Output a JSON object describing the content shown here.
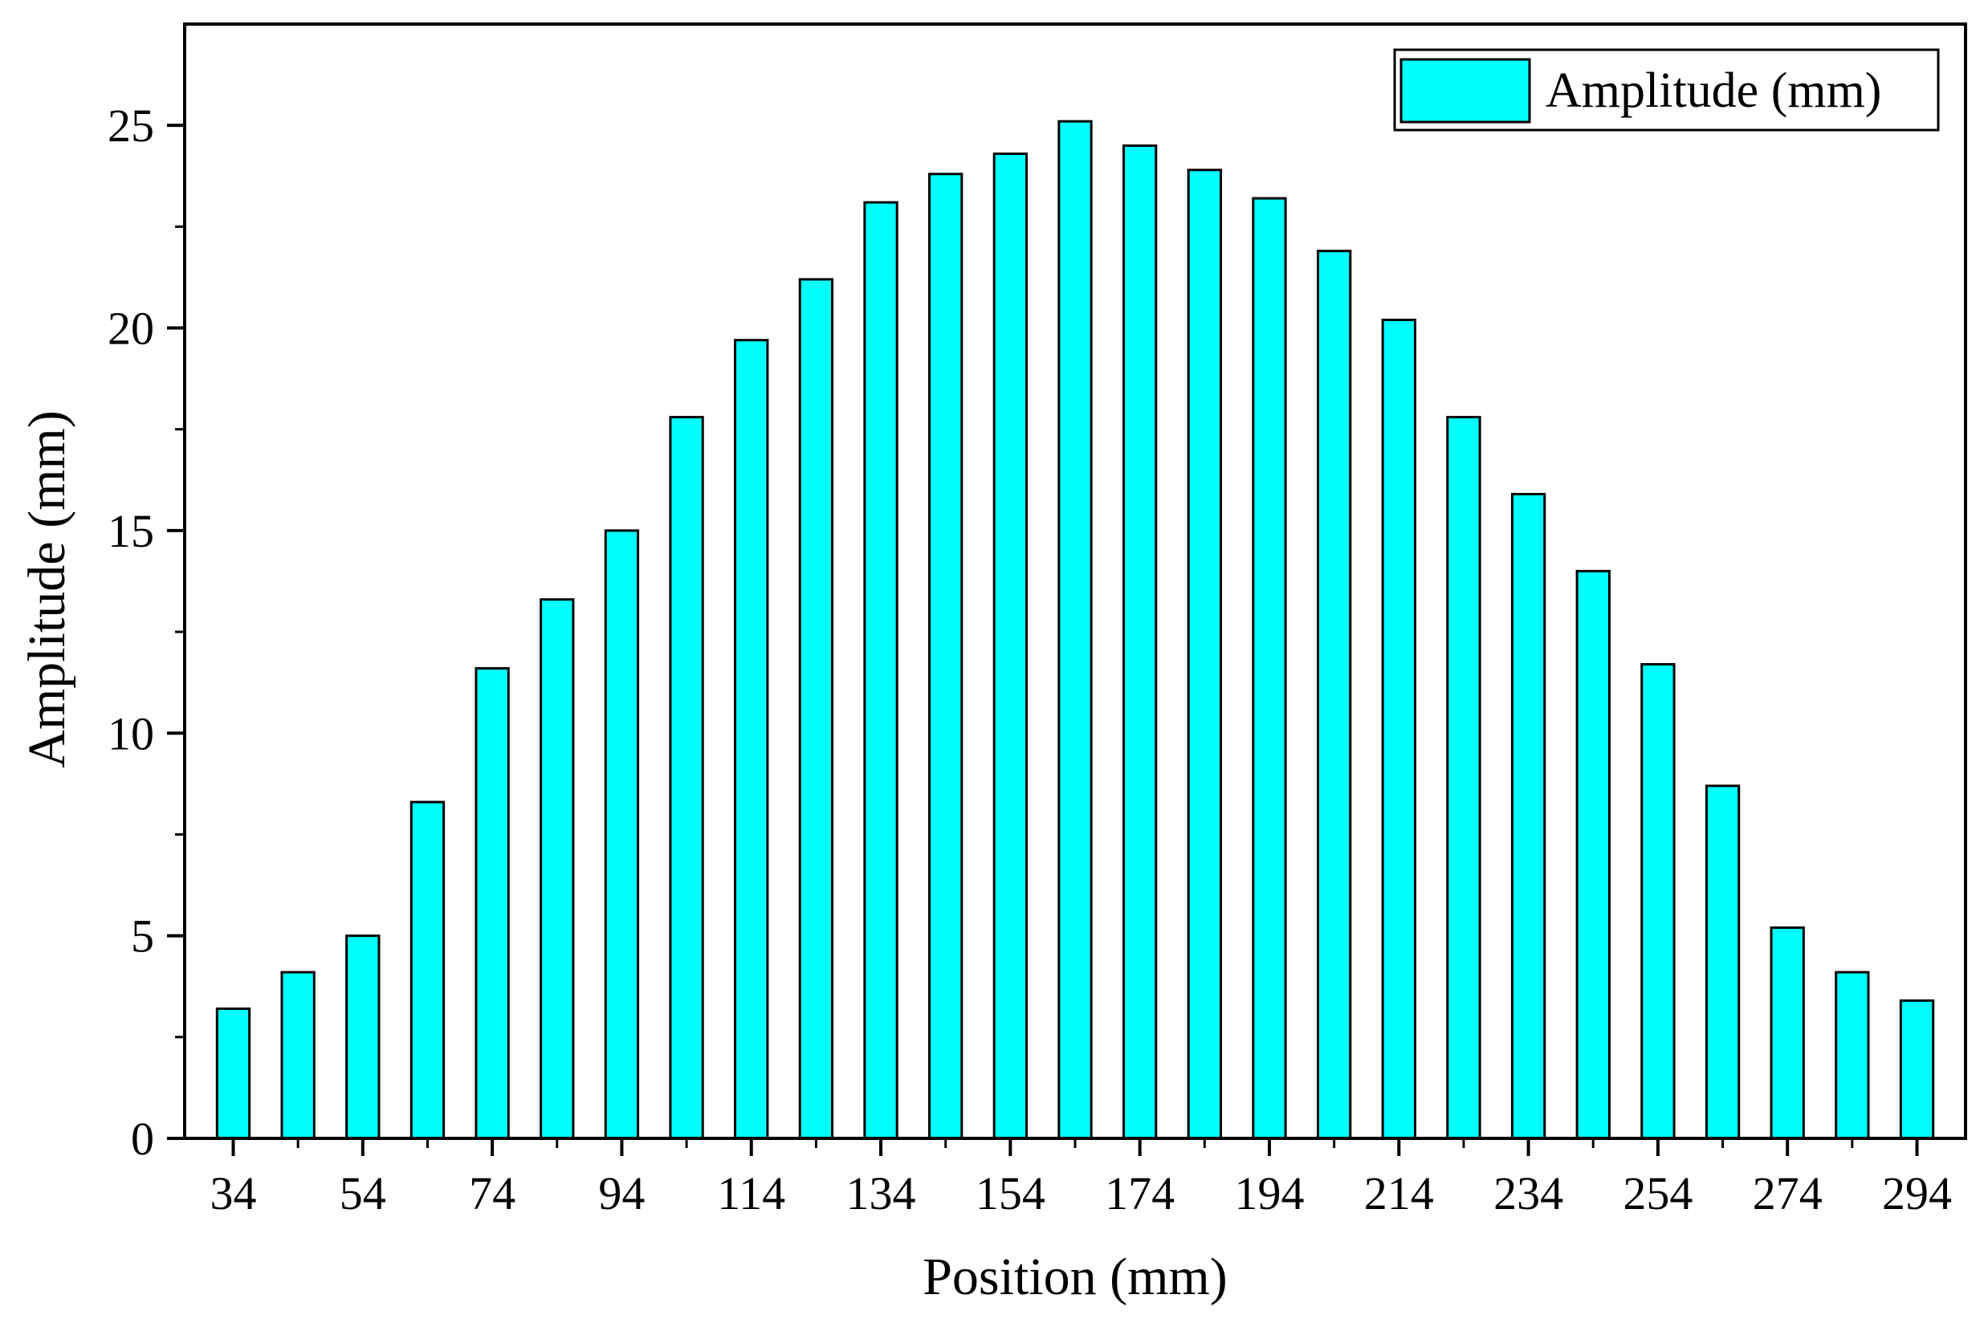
{
  "chart_data": {
    "type": "bar",
    "title": "",
    "xlabel": "Position (mm)",
    "ylabel": "Amplitude (mm)",
    "categories": [
      34,
      44,
      54,
      64,
      74,
      84,
      94,
      104,
      114,
      124,
      134,
      144,
      154,
      164,
      174,
      184,
      194,
      204,
      214,
      224,
      234,
      244,
      254,
      264,
      274,
      284,
      294
    ],
    "x_tick_labels": [
      "34",
      "54",
      "74",
      "94",
      "114",
      "134",
      "154",
      "174",
      "194",
      "214",
      "234",
      "254",
      "274",
      "294"
    ],
    "y_tick_labels": [
      "0",
      "5",
      "10",
      "15",
      "20",
      "25"
    ],
    "xlim": [
      26.5,
      301.5
    ],
    "ylim": [
      0,
      27.5
    ],
    "series": [
      {
        "name": "Amplitude (mm)",
        "color": "#00FFFF",
        "values": [
          3.2,
          4.1,
          5.0,
          8.3,
          11.6,
          13.3,
          15.0,
          17.8,
          19.7,
          21.2,
          23.1,
          23.8,
          24.3,
          25.1,
          24.5,
          23.9,
          23.2,
          21.9,
          20.2,
          17.8,
          15.9,
          14.0,
          11.7,
          8.7,
          5.2,
          4.1,
          3.4
        ]
      }
    ],
    "legend_position": "top-right",
    "grid": false,
    "bar_edge_color": "#000000"
  }
}
